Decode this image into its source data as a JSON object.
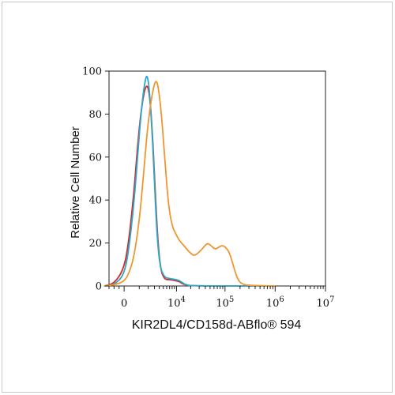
{
  "chart_data": {
    "type": "line",
    "title": "",
    "xlabel": "KIR2DL4/CD158d-ABflo® 594",
    "ylabel": "Relative Cell Number",
    "x_scale": "biexponential",
    "x_ticks": [
      {
        "label": "0",
        "value": 0
      },
      {
        "label": "10",
        "exp": "4",
        "value": 10000
      },
      {
        "label": "10",
        "exp": "5",
        "value": 100000
      },
      {
        "label": "10",
        "exp": "6",
        "value": 1000000
      },
      {
        "label": "10",
        "exp": "7",
        "value": 10000000
      }
    ],
    "ylim": [
      0,
      100
    ],
    "y_ticks": [
      "0",
      "20",
      "40",
      "60",
      "80",
      "100"
    ],
    "grid": false,
    "legend": "none",
    "series": [
      {
        "color": "#d62728",
        "points": [
          [
            -4,
            0
          ],
          [
            -2,
            1
          ],
          [
            0,
            8
          ],
          [
            1,
            22
          ],
          [
            2,
            45
          ],
          [
            2.6,
            63
          ],
          [
            3.2,
            78
          ],
          [
            3.8,
            88
          ],
          [
            4.3,
            93
          ],
          [
            4.7,
            93
          ],
          [
            5.1,
            88
          ],
          [
            5.6,
            72
          ],
          [
            6.1,
            48
          ],
          [
            6.6,
            24
          ],
          [
            7.2,
            8
          ],
          [
            8,
            3
          ],
          [
            9,
            3
          ],
          [
            10.2,
            2.5
          ],
          [
            11,
            2
          ],
          [
            11.6,
            1
          ],
          [
            12.3,
            0.5
          ],
          [
            13.5,
            0
          ],
          [
            30,
            0
          ]
        ]
      },
      {
        "color": "#2aa7c9",
        "points": [
          [
            -4,
            0
          ],
          [
            -2,
            0.5
          ],
          [
            0,
            5
          ],
          [
            1,
            18
          ],
          [
            2,
            40
          ],
          [
            2.6,
            58
          ],
          [
            3.2,
            76
          ],
          [
            3.8,
            90
          ],
          [
            4.3,
            97
          ],
          [
            4.6,
            98
          ],
          [
            5.0,
            92
          ],
          [
            5.5,
            74
          ],
          [
            6.0,
            50
          ],
          [
            6.5,
            25
          ],
          [
            7.1,
            9
          ],
          [
            8,
            4
          ],
          [
            9,
            3.5
          ],
          [
            10.2,
            3
          ],
          [
            11,
            2.5
          ],
          [
            11.6,
            1.5
          ],
          [
            12.3,
            0.5
          ],
          [
            13.5,
            0
          ],
          [
            30,
            0
          ]
        ]
      },
      {
        "color": "#f0962e",
        "points": [
          [
            -4,
            0
          ],
          [
            -2,
            0.5
          ],
          [
            0,
            2
          ],
          [
            1,
            6
          ],
          [
            2,
            14
          ],
          [
            3,
            30
          ],
          [
            3.8,
            50
          ],
          [
            4.5,
            70
          ],
          [
            5.2,
            84
          ],
          [
            5.8,
            92
          ],
          [
            6.3,
            96
          ],
          [
            6.8,
            93
          ],
          [
            7.5,
            78
          ],
          [
            8.2,
            55
          ],
          [
            8.8,
            38
          ],
          [
            9.5,
            28
          ],
          [
            10.3,
            24
          ],
          [
            11,
            21
          ],
          [
            11.8,
            19
          ],
          [
            12.5,
            17
          ],
          [
            13.3,
            15
          ],
          [
            14,
            14
          ],
          [
            15.0,
            16
          ],
          [
            15.8,
            18
          ],
          [
            16.5,
            20
          ],
          [
            17.2,
            19
          ],
          [
            18,
            17
          ],
          [
            18.8,
            18
          ],
          [
            19.5,
            19
          ],
          [
            20.2,
            18
          ],
          [
            20.8,
            16
          ],
          [
            21.4,
            12
          ],
          [
            22,
            7
          ],
          [
            22.6,
            3
          ],
          [
            23.3,
            1
          ],
          [
            24.5,
            0.3
          ],
          [
            30,
            0
          ]
        ]
      }
    ]
  }
}
